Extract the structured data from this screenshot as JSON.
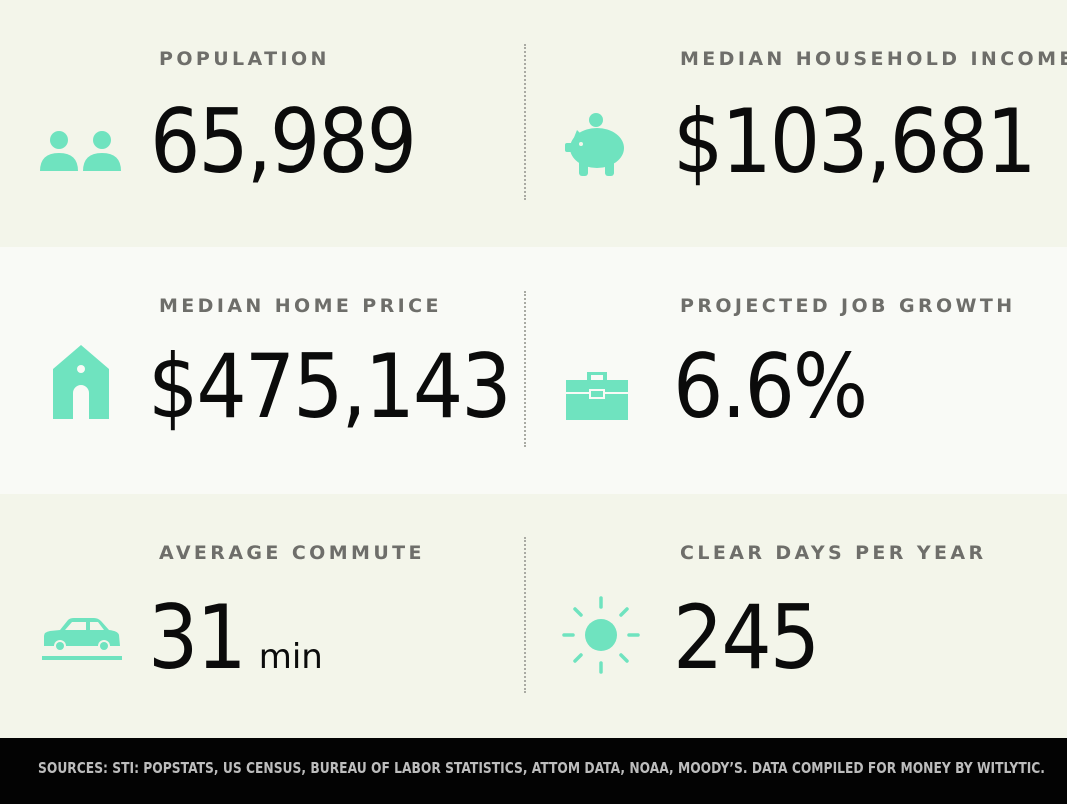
{
  "accent_color": "#6fe3bf",
  "stats": {
    "population": {
      "label": "POPULATION",
      "value": "65,989",
      "icon": "people-icon"
    },
    "income": {
      "label": "MEDIAN HOUSEHOLD INCOME",
      "value": "$103,681",
      "icon": "piggy-bank-icon"
    },
    "home_price": {
      "label": "MEDIAN HOME PRICE",
      "value": "$475,143",
      "icon": "house-icon"
    },
    "job_growth": {
      "label": "PROJECTED JOB GROWTH",
      "value": "6.6%",
      "icon": "briefcase-icon"
    },
    "commute": {
      "label": "AVERAGE COMMUTE",
      "value": "31",
      "unit": "min",
      "icon": "car-icon"
    },
    "clear_days": {
      "label": "CLEAR DAYS PER YEAR",
      "value": "245",
      "icon": "sun-icon"
    }
  },
  "footer": {
    "sources": "SOURCES: STI: POPSTATS, US CENSUS, BUREAU OF LABOR STATISTICS, ATTOM DATA, NOAA, MOODY’S. DATA COMPILED FOR MONEY BY WITLYTIC."
  }
}
